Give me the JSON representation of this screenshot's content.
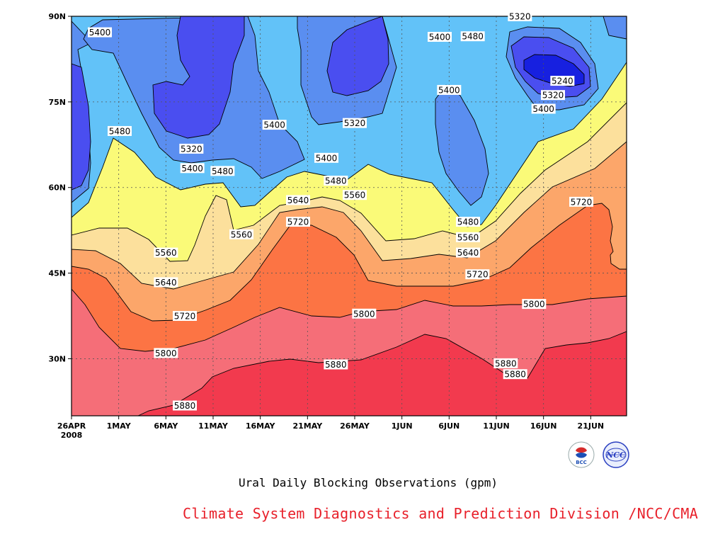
{
  "chart_data": {
    "type": "heatmap",
    "title": "",
    "subtitle": "Ural Daily Blocking Observations (gpm)",
    "xlabel": "",
    "ylabel": "",
    "x_ticks": [
      "26APR",
      "1MAY",
      "6MAY",
      "11MAY",
      "16MAY",
      "21MAY",
      "26MAY",
      "1JUN",
      "6JUN",
      "11JUN",
      "16JUN",
      "21JUN"
    ],
    "x_year": "2008",
    "x_range_days": [
      0,
      58.8
    ],
    "y_ticks": [
      "30N",
      "45N",
      "60N",
      "75N",
      "90N"
    ],
    "y_values": [
      30,
      45,
      60,
      75,
      90
    ],
    "ylim": [
      20,
      90
    ],
    "grid": true,
    "contour_levels": [
      5240,
      5320,
      5400,
      5480,
      5560,
      5640,
      5720,
      5800,
      5880
    ],
    "level_colors": [
      "#1720e0",
      "#4a4ef0",
      "#5a8ef0",
      "#62c2f8",
      "#fafa78",
      "#fce09c",
      "#fca66a",
      "#fc7444",
      "#f56e78",
      "#f23a4e"
    ],
    "contour_labels": [
      {
        "text": "5400",
        "day": 3.0,
        "lat": 87.2
      },
      {
        "text": "5480",
        "day": 5.1,
        "lat": 69.9
      },
      {
        "text": "5320",
        "day": 12.7,
        "lat": 66.8
      },
      {
        "text": "5400",
        "day": 12.8,
        "lat": 63.4
      },
      {
        "text": "5480",
        "day": 16.0,
        "lat": 62.9
      },
      {
        "text": "5400",
        "day": 21.5,
        "lat": 71.0
      },
      {
        "text": "5400",
        "day": 27.0,
        "lat": 65.2
      },
      {
        "text": "5320",
        "day": 30.0,
        "lat": 71.3
      },
      {
        "text": "5480",
        "day": 28.0,
        "lat": 61.2
      },
      {
        "text": "5560",
        "day": 30.0,
        "lat": 58.7
      },
      {
        "text": "5640",
        "day": 24.0,
        "lat": 57.8
      },
      {
        "text": "5720",
        "day": 24.0,
        "lat": 54.0
      },
      {
        "text": "5560",
        "day": 18.0,
        "lat": 51.8
      },
      {
        "text": "5560",
        "day": 10.0,
        "lat": 48.6
      },
      {
        "text": "5640",
        "day": 10.0,
        "lat": 43.4
      },
      {
        "text": "5720",
        "day": 12.0,
        "lat": 37.5
      },
      {
        "text": "5800",
        "day": 10.0,
        "lat": 31.0
      },
      {
        "text": "5800",
        "day": 31.0,
        "lat": 37.9
      },
      {
        "text": "5880",
        "day": 28.0,
        "lat": 29.0
      },
      {
        "text": "5880",
        "day": 12.0,
        "lat": 21.8
      },
      {
        "text": "5400",
        "day": 39.0,
        "lat": 86.4
      },
      {
        "text": "5480",
        "day": 42.5,
        "lat": 86.5
      },
      {
        "text": "5400",
        "day": 40.0,
        "lat": 77.1
      },
      {
        "text": "5320",
        "day": 47.5,
        "lat": 90.0
      },
      {
        "text": "5240",
        "day": 52.0,
        "lat": 78.7
      },
      {
        "text": "5320",
        "day": 51.0,
        "lat": 76.2
      },
      {
        "text": "5400",
        "day": 50.0,
        "lat": 73.8
      },
      {
        "text": "5480",
        "day": 42.0,
        "lat": 54.0
      },
      {
        "text": "5560",
        "day": 42.0,
        "lat": 51.3
      },
      {
        "text": "5640",
        "day": 42.0,
        "lat": 48.6
      },
      {
        "text": "5720",
        "day": 43.0,
        "lat": 44.8
      },
      {
        "text": "5800",
        "day": 49.0,
        "lat": 39.6
      },
      {
        "text": "5720",
        "day": 54.0,
        "lat": 57.5
      },
      {
        "text": "5880",
        "day": 46.0,
        "lat": 29.2
      },
      {
        "text": "5880",
        "day": 47.0,
        "lat": 27.3
      }
    ]
  },
  "footer": {
    "credit": "Climate System Diagnostics and Prediction Division /NCC/CMA"
  },
  "logos": {
    "left_text": "BCC",
    "right_text": "NCC"
  }
}
